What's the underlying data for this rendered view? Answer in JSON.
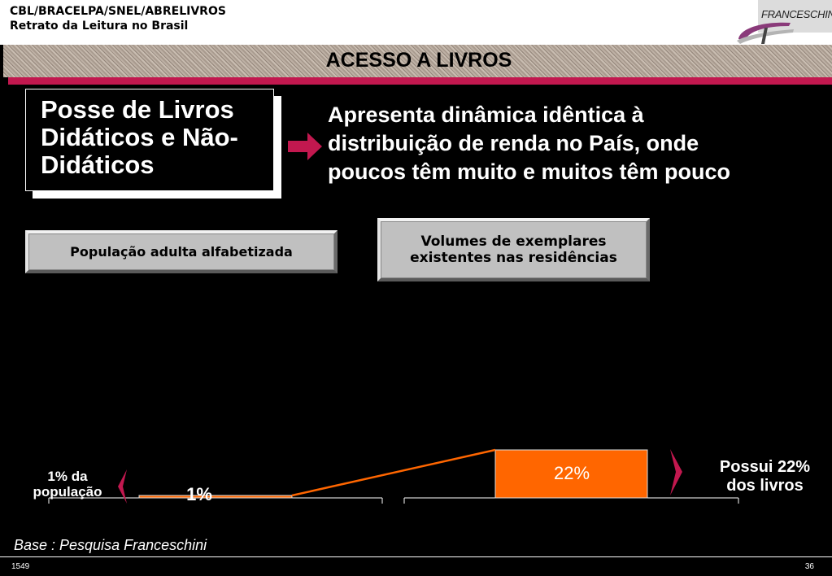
{
  "header": {
    "line1": "CBL/BRACELPA/SNEL/ABRELIVROS",
    "line2": "Retrato da Leitura no Brasil",
    "logo_text": "FRANCESCHINI"
  },
  "title": "ACESSO A LIVROS",
  "posse_box": {
    "line1": "Posse de Livros",
    "line2": "Didáticos e Não-",
    "line3": "Didáticos"
  },
  "description": {
    "line1": "Apresenta dinâmica idêntica à",
    "line2": "distribuição de renda no País, onde",
    "line3": "poucos têm muito e muitos têm pouco"
  },
  "box_population": "População adulta alfabetizada",
  "box_volumes": {
    "line1": "Volumes de exemplares",
    "line2": "existentes nas residências"
  },
  "chart_data": {
    "type": "bar",
    "categories": [
      "População adulta alfabetizada",
      "Volumes de exemplares existentes nas residências"
    ],
    "values": [
      1,
      22
    ],
    "value_labels": [
      "1%",
      "22%"
    ],
    "bar_color": "#ff6600",
    "ylim": [
      0,
      22
    ]
  },
  "label_left": {
    "line1": "1% da",
    "line2": "população"
  },
  "label_right": {
    "line1": "Possui 22%",
    "line2": "dos livros"
  },
  "footer": {
    "base": "Base : Pesquisa Franceschini",
    "left_number": "1549",
    "page_number": "36"
  },
  "colors": {
    "accent_magenta": "#c2184f",
    "bar_orange": "#ff6600",
    "background": "#000000"
  }
}
